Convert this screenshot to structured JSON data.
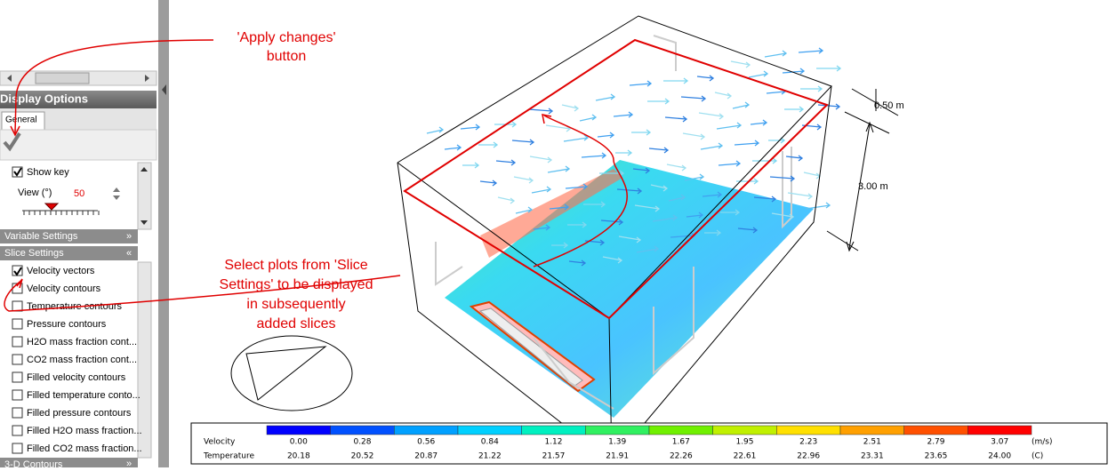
{
  "annotations": {
    "apply_changes": [
      "'Apply changes'",
      "button"
    ],
    "select_plots": [
      "Select plots from 'Slice",
      "Settings' to be displayed",
      "in subsequently",
      "added slices"
    ]
  },
  "panel": {
    "title": "Display Options",
    "tab": "General",
    "show_key": {
      "label": "Show key",
      "checked": true
    },
    "view_label": "View (°)",
    "view_value": "50",
    "sections": [
      "Variable Settings",
      "Slice Settings"
    ],
    "slice_items": [
      {
        "label": "Velocity vectors",
        "checked": true
      },
      {
        "label": "Velocity contours",
        "checked": false
      },
      {
        "label": "Temperature contours",
        "checked": false
      },
      {
        "label": "Pressure contours",
        "checked": false
      },
      {
        "label": "H2O mass fraction cont...",
        "checked": false
      },
      {
        "label": "CO2 mass fraction cont...",
        "checked": false
      },
      {
        "label": "Filled velocity contours",
        "checked": false
      },
      {
        "label": "Filled temperature conto...",
        "checked": false
      },
      {
        "label": "Filled pressure contours",
        "checked": false
      },
      {
        "label": "Filled H2O mass fraction...",
        "checked": false
      },
      {
        "label": "Filled CO2 mass fraction...",
        "checked": false
      }
    ],
    "footer_section": "3-D Contours"
  },
  "dimensions": [
    "0.50 m",
    "3.00 m"
  ],
  "key": {
    "colors": [
      "#0000ff",
      "#0050ff",
      "#00a0ff",
      "#00d0ff",
      "#00f0c0",
      "#30f060",
      "#70f000",
      "#c0f000",
      "#ffe000",
      "#ffa000",
      "#ff5000",
      "#ff0000"
    ],
    "rows": [
      {
        "name": "Velocity",
        "unit": "(m/s)",
        "values": [
          "0.00",
          "0.28",
          "0.56",
          "0.84",
          "1.12",
          "1.39",
          "1.67",
          "1.95",
          "2.23",
          "2.51",
          "2.79",
          "3.07"
        ]
      },
      {
        "name": "Temperature",
        "unit": "(C)",
        "values": [
          "20.18",
          "20.52",
          "20.87",
          "21.22",
          "21.57",
          "21.91",
          "22.26",
          "22.61",
          "22.96",
          "23.31",
          "23.65",
          "24.00"
        ]
      }
    ]
  }
}
